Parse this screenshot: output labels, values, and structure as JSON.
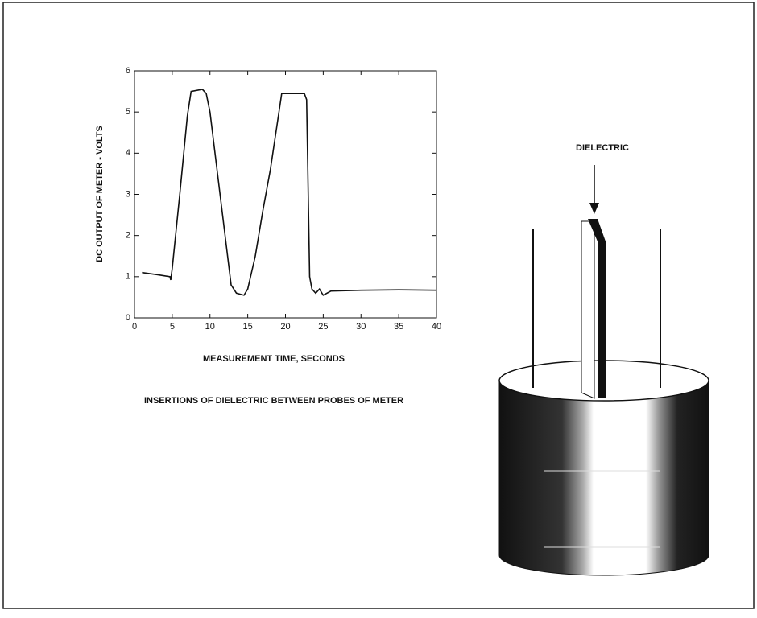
{
  "chart_data": {
    "type": "line",
    "x_label": "MEASUREMENT TIME, SECONDS",
    "y_label": "DC  OUTPUT OF METER - VOLTS",
    "caption": "INSERTIONS OF DIELECTRIC BETWEEN PROBES OF METER",
    "annotation": "DIELECTRIC",
    "x": [
      1,
      3,
      4.7,
      4.8,
      5,
      6,
      7,
      7.5,
      9,
      9.5,
      10,
      11,
      12,
      12.8,
      13.5,
      14.5,
      15,
      16,
      17,
      18,
      19.3,
      19.5,
      22.5,
      22.8,
      23.2,
      23.5,
      24,
      24.5,
      25,
      26,
      30,
      35,
      40
    ],
    "series": [
      {
        "color": "#111111",
        "values": [
          1.1,
          1.05,
          1.0,
          0.92,
          1.2,
          3.0,
          4.9,
          5.5,
          5.55,
          5.45,
          5.0,
          3.5,
          2.0,
          0.8,
          0.6,
          0.55,
          0.7,
          1.5,
          2.6,
          3.6,
          5.2,
          5.45,
          5.45,
          5.3,
          1.0,
          0.7,
          0.6,
          0.7,
          0.55,
          0.65,
          0.67,
          0.68,
          0.67
        ]
      }
    ],
    "xlim": [
      0,
      40
    ],
    "xticks": [
      0,
      5,
      10,
      15,
      20,
      25,
      30,
      35,
      40
    ],
    "ylim": [
      0,
      6
    ],
    "yticks": [
      0,
      1,
      2,
      3,
      4,
      5,
      6
    ]
  }
}
